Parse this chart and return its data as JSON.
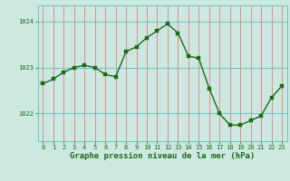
{
  "x": [
    0,
    1,
    2,
    3,
    4,
    5,
    6,
    7,
    8,
    9,
    10,
    11,
    12,
    13,
    14,
    15,
    16,
    17,
    18,
    19,
    20,
    21,
    22,
    23
  ],
  "y": [
    1022.65,
    1022.75,
    1022.9,
    1023.0,
    1023.05,
    1023.0,
    1022.85,
    1022.8,
    1023.35,
    1023.45,
    1023.65,
    1023.8,
    1023.95,
    1023.75,
    1023.25,
    1023.2,
    1022.55,
    1022.0,
    1021.75,
    1021.75,
    1021.85,
    1021.95,
    1022.35,
    1022.6
  ],
  "line_color": "#1a6b1a",
  "marker_color": "#1a6b1a",
  "bg_color": "#cce8e0",
  "grid_color_h": "#5abfbf",
  "grid_color_v": "#e08080",
  "axis_color": "#1a6b1a",
  "xlabel": "Graphe pression niveau de la mer (hPa)",
  "xlabel_fontsize": 6.5,
  "yticks": [
    1022,
    1023,
    1024
  ],
  "ylim": [
    1021.4,
    1024.35
  ],
  "xlim": [
    -0.5,
    23.5
  ],
  "xticks": [
    0,
    1,
    2,
    3,
    4,
    5,
    6,
    7,
    8,
    9,
    10,
    11,
    12,
    13,
    14,
    15,
    16,
    17,
    18,
    19,
    20,
    21,
    22,
    23
  ],
  "tick_fontsize": 5.0,
  "line_width": 1.0,
  "marker_size": 2.2
}
